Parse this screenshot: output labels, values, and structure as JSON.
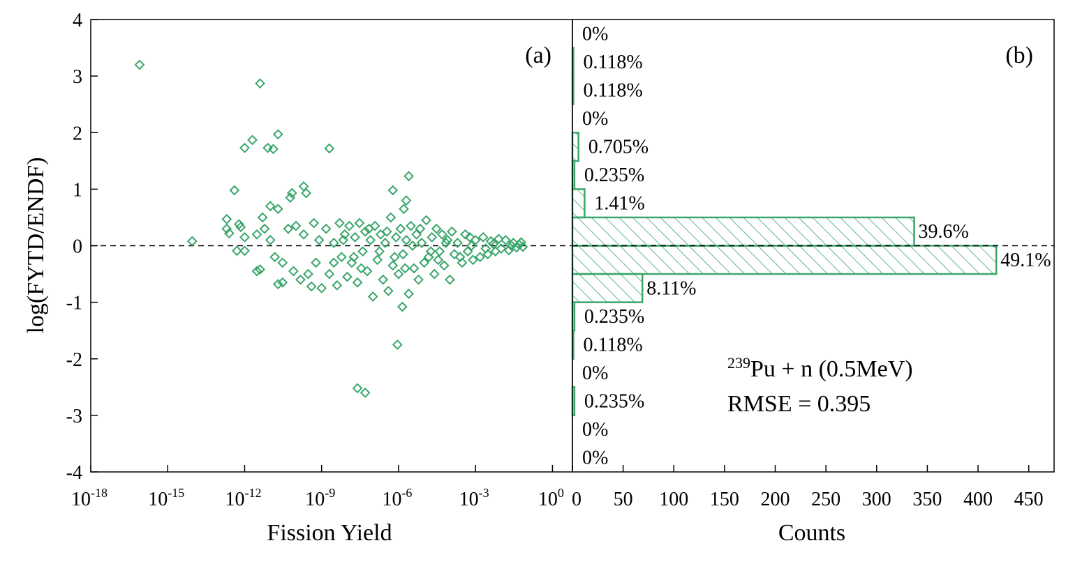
{
  "chart_data": [
    {
      "type": "scatter",
      "panel_label": "(a)",
      "xlabel": "Fission Yield",
      "ylabel": "log(FYTD/ENDF)",
      "xscale": "log",
      "xlim": [
        1e-18,
        6
      ],
      "ylim": [
        -4,
        4
      ],
      "hline": 0,
      "color": "#3aa66a",
      "marker": "diamond",
      "xticks": [
        {
          "value": 1e-18,
          "label": "10",
          "exponent": "-18"
        },
        {
          "value": 1e-15,
          "label": "10",
          "exponent": "-15"
        },
        {
          "value": 1e-12,
          "label": "10",
          "exponent": "-12"
        },
        {
          "value": 1e-09,
          "label": "10",
          "exponent": "-9"
        },
        {
          "value": 1e-06,
          "label": "10",
          "exponent": "-6"
        },
        {
          "value": 0.001,
          "label": "10",
          "exponent": "-3"
        },
        {
          "value": 1,
          "label": "10",
          "exponent": "0"
        }
      ],
      "yticks": [
        -4,
        -3,
        -2,
        -1,
        0,
        1,
        2,
        3,
        4
      ],
      "x": [
        8e-17,
        9e-15,
        4e-12,
        2e-12,
        1e-12,
        8e-12,
        1.3e-11,
        2e-11,
        2e-09,
        4e-13,
        2e-13,
        2e-13,
        2.5e-13,
        6e-13,
        7e-13,
        5e-12,
        1e-11,
        2e-11,
        6e-11,
        7e-11,
        2e-10,
        2.5e-10,
        5e-13,
        1e-12,
        3e-12,
        4e-12,
        2e-11,
        3e-11,
        1e-12,
        3e-12,
        6e-12,
        1e-11,
        1.5e-11,
        3e-11,
        5e-11,
        8e-11,
        1e-10,
        1.5e-10,
        2e-10,
        3e-10,
        4e-10,
        5e-10,
        6e-10,
        8e-10,
        1e-09,
        2.5e-08,
        5e-08,
        9e-07,
        2.5e-06,
        6e-07,
        2e-06,
        1.6e-06,
        1.4e-06,
        1.5e-09,
        2e-09,
        3e-09,
        4e-09,
        5e-09,
        6e-09,
        8e-09,
        1e-08,
        1.2e-08,
        1.5e-08,
        2e-08,
        2.5e-08,
        3e-08,
        4e-08,
        5e-08,
        6e-08,
        8e-08,
        1e-07,
        1.2e-07,
        1.5e-07,
        2e-07,
        2.5e-07,
        3e-07,
        4e-07,
        5e-07,
        6e-07,
        8e-07,
        1e-06,
        1.2e-06,
        1.5e-06,
        2e-06,
        2.5e-06,
        3e-06,
        4e-06,
        5e-06,
        6e-06,
        8e-06,
        1e-05,
        1.2e-05,
        1.5e-05,
        2e-05,
        2.5e-05,
        3e-05,
        4e-05,
        5e-05,
        6e-05,
        8e-05,
        0.0001,
        0.00012,
        0.00015,
        0.0002,
        0.0003,
        0.0004,
        0.0005,
        0.0006,
        0.0008,
        0.001,
        0.0015,
        0.002,
        0.003,
        0.004,
        0.006,
        0.008,
        0.01,
        0.015,
        0.02,
        0.03,
        0.04,
        0.05,
        0.06,
        0.07,
        3e-09,
        7e-09,
        1.8e-08,
        3.5e-08,
        7e-08,
        1.8e-07,
        3.5e-07,
        7e-07,
        1.8e-06,
        3.5e-06,
        7e-06,
        1.8e-05,
        3.5e-05,
        7e-05,
        0.00025,
        0.0007,
        0.0025,
        0.005,
        0.025
      ],
      "y": [
        3.2,
        0.08,
        2.87,
        1.87,
        1.73,
        1.73,
        1.71,
        1.97,
        1.72,
        0.98,
        0.47,
        0.3,
        0.22,
        0.38,
        0.33,
        0.5,
        0.7,
        0.65,
        0.85,
        0.93,
        1.05,
        0.93,
        -0.09,
        -0.09,
        -0.45,
        -0.42,
        -0.68,
        -0.65,
        0.15,
        0.2,
        0.3,
        0.1,
        -0.2,
        -0.3,
        0.3,
        -0.45,
        0.35,
        -0.6,
        0.2,
        -0.5,
        -0.72,
        0.4,
        -0.3,
        0.1,
        -0.75,
        -2.52,
        -2.6,
        -1.75,
        1.23,
        0.98,
        0.8,
        0.65,
        -1.08,
        0.3,
        -0.5,
        0.05,
        -0.7,
        0.4,
        -0.2,
        0.2,
        -0.55,
        0.35,
        -0.3,
        0.15,
        -0.65,
        0.4,
        -0.1,
        0.25,
        -0.45,
        0.1,
        -0.9,
        0.35,
        -0.25,
        0.2,
        -0.6,
        0.05,
        -0.8,
        0.5,
        -0.35,
        0.15,
        -0.5,
        0.3,
        -0.15,
        0.1,
        -0.85,
        0.35,
        -0.4,
        0.2,
        -0.6,
        0.05,
        -0.3,
        0.45,
        -0.2,
        0.15,
        -0.5,
        0.3,
        -0.1,
        0.2,
        -0.35,
        0.1,
        -0.6,
        0.25,
        -0.15,
        0.05,
        -0.3,
        0.2,
        -0.1,
        0.15,
        -0.25,
        0.1,
        -0.2,
        0.15,
        -0.15,
        0.08,
        -0.1,
        0.12,
        -0.05,
        0.1,
        -0.08,
        0.05,
        -0.03,
        0.02,
        0.06,
        -0.02,
        -0.3,
        0.1,
        -0.2,
        -0.4,
        0.3,
        -0.1,
        0.25,
        -0.2,
        -0.4,
        0.0,
        0.3,
        -0.1,
        -0.25,
        0.05,
        -0.2,
        0.0,
        -0.05,
        0.03,
        0.0
      ]
    },
    {
      "type": "histogram",
      "orientation": "horizontal",
      "panel_label": "(b)",
      "xlabel": "Counts",
      "xlim": [
        0,
        475
      ],
      "xticks": [
        0,
        50,
        100,
        150,
        200,
        250,
        300,
        350,
        400,
        450
      ],
      "ylim": [
        -4,
        4
      ],
      "hline": 0,
      "color": "#3aa66a",
      "hatch": "diagonal",
      "bins": [
        -4,
        -3.5,
        -3,
        -2.5,
        -2,
        -1.5,
        -1,
        -0.5,
        0,
        0.5,
        1,
        1.5,
        2,
        2.5,
        3,
        3.5,
        4
      ],
      "counts": [
        0,
        0,
        2,
        0,
        1,
        2,
        69,
        418,
        337,
        12,
        2,
        6,
        0,
        1,
        1,
        0
      ],
      "percent_labels": [
        "0%",
        "0%",
        "0.235%",
        "0%",
        "0.118%",
        "0.235%",
        "8.11%",
        "49.1%",
        "39.6%",
        "1.41%",
        "0.235%",
        "0.705%",
        "0%",
        "0.118%",
        "0.118%",
        "0%"
      ],
      "annotations": [
        {
          "superscript": "239",
          "text": "Pu + n (0.5MeV)"
        },
        {
          "text": "RMSE = 0.395"
        }
      ]
    }
  ]
}
